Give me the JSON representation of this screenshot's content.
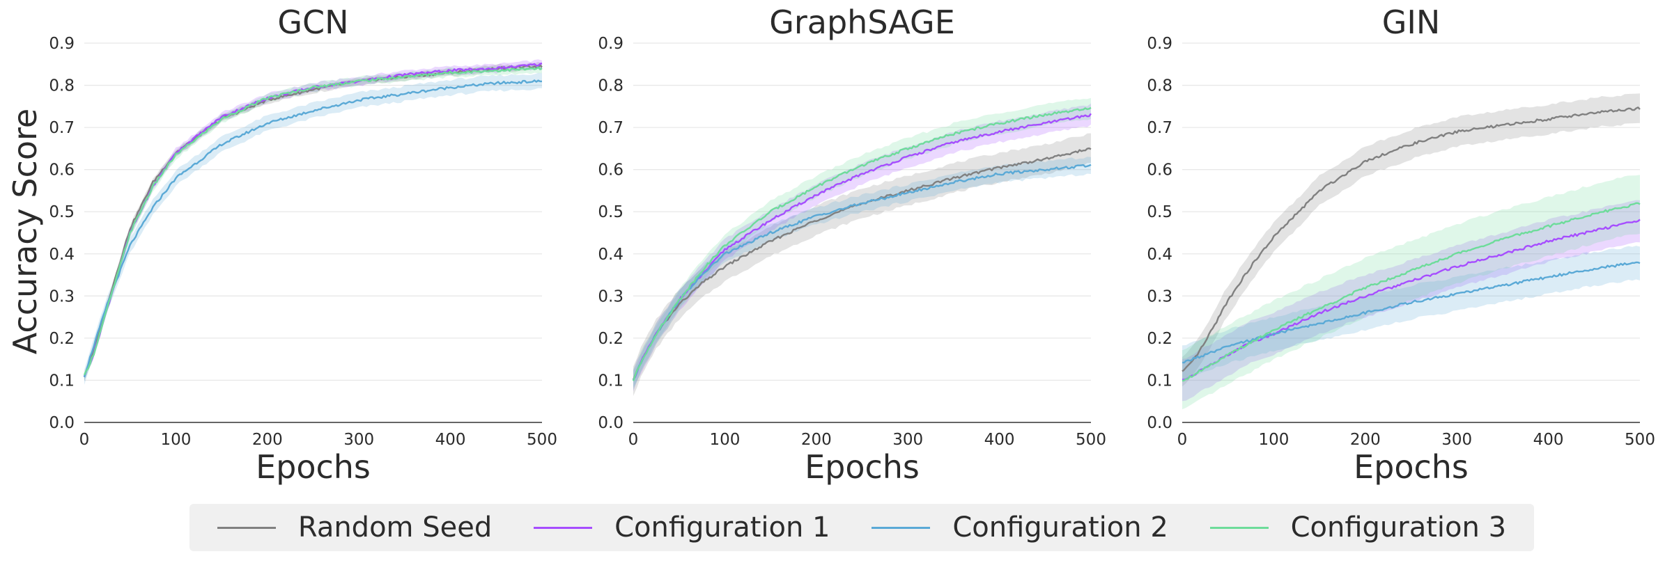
{
  "chart_data": [
    {
      "type": "line",
      "title": "GCN",
      "xlabel": "Epochs",
      "ylabel": "Accuracy Score",
      "xlim": [
        0,
        500
      ],
      "ylim": [
        0,
        0.9
      ],
      "xticks": [
        "0",
        "100",
        "200",
        "300",
        "400",
        "500"
      ],
      "yticks": [
        "0.0",
        "0.1",
        "0.2",
        "0.3",
        "0.4",
        "0.5",
        "0.6",
        "0.7",
        "0.8",
        "0.9"
      ],
      "grid": true,
      "x": [
        0,
        10,
        25,
        50,
        75,
        100,
        150,
        200,
        250,
        300,
        350,
        400,
        450,
        500
      ],
      "series": [
        {
          "name": "Random Seed",
          "color": "#808080",
          "values": [
            0.11,
            0.17,
            0.28,
            0.46,
            0.57,
            0.64,
            0.72,
            0.765,
            0.79,
            0.81,
            0.82,
            0.83,
            0.84,
            0.845
          ],
          "band": 0.008
        },
        {
          "name": "Configuration 1",
          "color": "#a64dff",
          "values": [
            0.11,
            0.16,
            0.27,
            0.45,
            0.56,
            0.64,
            0.725,
            0.77,
            0.795,
            0.81,
            0.825,
            0.835,
            0.84,
            0.85
          ],
          "band": 0.01
        },
        {
          "name": "Configuration 2",
          "color": "#5aa9d6",
          "values": [
            0.11,
            0.18,
            0.28,
            0.42,
            0.51,
            0.58,
            0.66,
            0.71,
            0.74,
            0.765,
            0.78,
            0.795,
            0.805,
            0.81
          ],
          "band": 0.018
        },
        {
          "name": "Configuration 3",
          "color": "#6ddc9a",
          "values": [
            0.11,
            0.16,
            0.27,
            0.45,
            0.56,
            0.635,
            0.72,
            0.77,
            0.795,
            0.81,
            0.82,
            0.83,
            0.835,
            0.84
          ],
          "band": 0.01
        }
      ]
    },
    {
      "type": "line",
      "title": "GraphSAGE",
      "xlabel": "Epochs",
      "ylabel": "",
      "xlim": [
        0,
        500
      ],
      "ylim": [
        0,
        0.9
      ],
      "xticks": [
        "0",
        "100",
        "200",
        "300",
        "400",
        "500"
      ],
      "yticks": [
        "0.0",
        "0.1",
        "0.2",
        "0.3",
        "0.4",
        "0.5",
        "0.6",
        "0.7",
        "0.8",
        "0.9"
      ],
      "grid": true,
      "x": [
        0,
        10,
        25,
        50,
        75,
        100,
        150,
        200,
        250,
        300,
        350,
        400,
        450,
        500
      ],
      "series": [
        {
          "name": "Random Seed",
          "color": "#808080",
          "values": [
            0.1,
            0.15,
            0.21,
            0.28,
            0.33,
            0.37,
            0.43,
            0.48,
            0.52,
            0.55,
            0.58,
            0.605,
            0.625,
            0.65
          ],
          "band": 0.035
        },
        {
          "name": "Configuration 1",
          "color": "#a64dff",
          "values": [
            0.1,
            0.15,
            0.21,
            0.29,
            0.35,
            0.41,
            0.48,
            0.54,
            0.59,
            0.63,
            0.665,
            0.69,
            0.71,
            0.73
          ],
          "band": 0.025
        },
        {
          "name": "Configuration 2",
          "color": "#5aa9d6",
          "values": [
            0.1,
            0.15,
            0.21,
            0.29,
            0.35,
            0.4,
            0.45,
            0.49,
            0.52,
            0.545,
            0.57,
            0.59,
            0.6,
            0.61
          ],
          "band": 0.02
        },
        {
          "name": "Configuration 3",
          "color": "#6ddc9a",
          "values": [
            0.1,
            0.15,
            0.21,
            0.29,
            0.36,
            0.42,
            0.5,
            0.56,
            0.61,
            0.65,
            0.685,
            0.71,
            0.73,
            0.745
          ],
          "band": 0.025
        }
      ]
    },
    {
      "type": "line",
      "title": "GIN",
      "xlabel": "Epochs",
      "ylabel": "",
      "xlim": [
        0,
        500
      ],
      "ylim": [
        0,
        0.9
      ],
      "xticks": [
        "0",
        "100",
        "200",
        "300",
        "400",
        "500"
      ],
      "yticks": [
        "0.0",
        "0.1",
        "0.2",
        "0.3",
        "0.4",
        "0.5",
        "0.6",
        "0.7",
        "0.8",
        "0.9"
      ],
      "grid": true,
      "x": [
        0,
        10,
        25,
        50,
        75,
        100,
        150,
        200,
        250,
        300,
        350,
        400,
        450,
        500
      ],
      "series": [
        {
          "name": "Random Seed",
          "color": "#808080",
          "values": [
            0.12,
            0.14,
            0.19,
            0.29,
            0.37,
            0.44,
            0.55,
            0.62,
            0.66,
            0.69,
            0.705,
            0.72,
            0.735,
            0.745
          ],
          "band": 0.035
        },
        {
          "name": "Configuration 1",
          "color": "#a64dff",
          "values": [
            0.1,
            0.11,
            0.13,
            0.16,
            0.19,
            0.21,
            0.26,
            0.3,
            0.335,
            0.37,
            0.4,
            0.43,
            0.455,
            0.48
          ],
          "band": 0.05
        },
        {
          "name": "Configuration 2",
          "color": "#5aa9d6",
          "values": [
            0.14,
            0.15,
            0.16,
            0.18,
            0.195,
            0.21,
            0.235,
            0.26,
            0.285,
            0.305,
            0.325,
            0.345,
            0.365,
            0.38
          ],
          "band": 0.04
        },
        {
          "name": "Configuration 3",
          "color": "#6ddc9a",
          "values": [
            0.1,
            0.11,
            0.13,
            0.16,
            0.19,
            0.22,
            0.27,
            0.32,
            0.36,
            0.4,
            0.435,
            0.465,
            0.495,
            0.52
          ],
          "band": 0.07
        }
      ]
    }
  ],
  "legend": {
    "placement": "bottom-center",
    "items": [
      {
        "label": "Random Seed",
        "color": "#808080"
      },
      {
        "label": "Configuration 1",
        "color": "#a64dff"
      },
      {
        "label": "Configuration 2",
        "color": "#5aa9d6"
      },
      {
        "label": "Configuration 3",
        "color": "#6ddc9a"
      }
    ]
  }
}
